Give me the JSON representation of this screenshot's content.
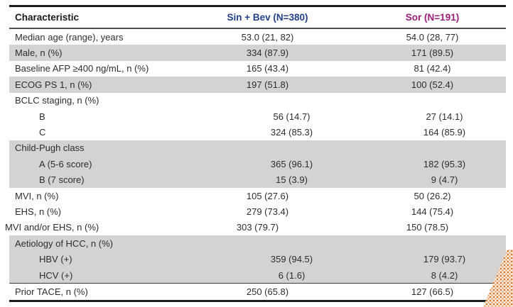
{
  "table": {
    "columns": {
      "characteristic": "Characteristic",
      "sinbev": "Sin + Bev (N=380)",
      "sor": "Sor (N=191)"
    },
    "header_colors": {
      "characteristic": "#1a1a1a",
      "sinbev": "#24408c",
      "sor": "#9a1d78"
    },
    "row_shading_color": "#d5d3d1",
    "rows": [
      {
        "label": "Median age (range), years",
        "sin_bev": "53.0 (21, 82)",
        "sor": "54.0 (28, 77)",
        "shaded": false,
        "indent": 0
      },
      {
        "label": "Male, n (%)",
        "sin_bev": "334 (87.9)",
        "sor": "171 (89.5)",
        "shaded": true,
        "indent": 0
      },
      {
        "label": "Baseline AFP ≥400 ng/mL, n (%)",
        "sin_bev": "165 (43.4)",
        "sor": "81 (42.4)",
        "shaded": false,
        "indent": 0
      },
      {
        "label": "ECOG PS 1, n (%)",
        "sin_bev": "197 (51.8)",
        "sor": "100 (52.4)",
        "shaded": true,
        "indent": 0
      },
      {
        "label": "BCLC staging, n (%)",
        "sin_bev": "",
        "sor": "",
        "shaded": false,
        "indent": 0
      },
      {
        "label": "B",
        "sin_bev": "56 (14.7)",
        "sor": "27 (14.1)",
        "shaded": false,
        "indent": 1
      },
      {
        "label": "C",
        "sin_bev": "324 (85.3)",
        "sor": "164 (85.9)",
        "shaded": false,
        "indent": 1
      },
      {
        "label": "Child-Pugh class",
        "sin_bev": "",
        "sor": "",
        "shaded": true,
        "indent": 0
      },
      {
        "label": "A (5-6 score)",
        "sin_bev": "365 (96.1)",
        "sor": "182 (95.3)",
        "shaded": true,
        "indent": 1
      },
      {
        "label": "B (7 score)",
        "sin_bev": "15 (3.9)",
        "sor": "9 (4.7)",
        "shaded": true,
        "indent": 1
      },
      {
        "label": "MVI, n (%)",
        "sin_bev": "105 (27.6)",
        "sor": "50 (26.2)",
        "shaded": false,
        "indent": 0
      },
      {
        "label": "EHS, n (%)",
        "sin_bev": "279 (73.4)",
        "sor": "144 (75.4)",
        "shaded": false,
        "indent": 0
      },
      {
        "label": "MVI and/or EHS, n (%)",
        "sin_bev": "303 (79.7)",
        "sor": "150 (78.5)",
        "shaded": false,
        "indent": -1
      },
      {
        "label": "Aetiology of HCC, n (%)",
        "sin_bev": "",
        "sor": "",
        "shaded": true,
        "indent": 0
      },
      {
        "label": "HBV (+)",
        "sin_bev": "359 (94.5)",
        "sor": "179 (93.7)",
        "shaded": true,
        "indent": 1
      },
      {
        "label": "HCV (+)",
        "sin_bev": "6 (1.6)",
        "sor": "8 (4.2)",
        "shaded": true,
        "indent": 1
      },
      {
        "label": "Prior TACE, n (%)",
        "sin_bev": "250 (65.8)",
        "sor": "127 (66.5)",
        "shaded": false,
        "indent": 0,
        "top_rule": true
      }
    ]
  },
  "decoration": {
    "halftone_dot_color": "#d9762c",
    "halftone_dot_color_light": "#efa465"
  }
}
